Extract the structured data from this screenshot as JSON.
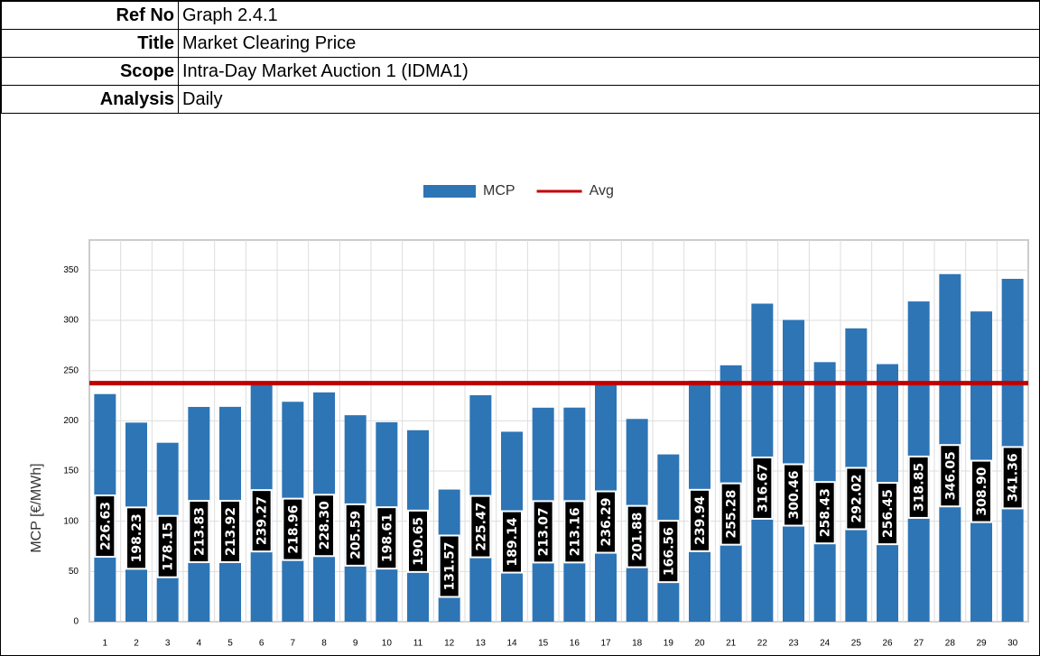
{
  "header": {
    "rows": [
      [
        "Ref No",
        "Graph 2.4.1"
      ],
      [
        "Title",
        "Market Clearing Price"
      ],
      [
        "Scope",
        "Intra-Day Market Auction 1 (IDMA1)"
      ],
      [
        "Analysis",
        "Daily"
      ]
    ]
  },
  "chart_data": {
    "type": "bar",
    "y_label": "MCP [€/MWh]",
    "categories": [
      "1",
      "2",
      "3",
      "4",
      "5",
      "6",
      "7",
      "8",
      "9",
      "10",
      "11",
      "12",
      "13",
      "14",
      "15",
      "16",
      "17",
      "18",
      "19",
      "20",
      "21",
      "22",
      "23",
      "24",
      "25",
      "26",
      "27",
      "28",
      "29",
      "30"
    ],
    "series": [
      {
        "name": "MCP",
        "color": "#2e75b6",
        "values": [
          226.63,
          198.23,
          178.15,
          213.83,
          213.92,
          239.27,
          218.96,
          228.3,
          205.59,
          198.61,
          190.65,
          131.57,
          225.47,
          189.14,
          213.07,
          213.16,
          236.29,
          201.88,
          166.56,
          239.94,
          255.28,
          316.67,
          300.46,
          258.43,
          292.02,
          256.45,
          318.85,
          346.05,
          308.9,
          341.36
        ],
        "value_labels": [
          "226.63",
          "198.23",
          "178.15",
          "213.83",
          "213.92",
          "239.27",
          "218.96",
          "228.30",
          "205.59",
          "198.61",
          "190.65",
          "131.57",
          "225.47",
          "189.14",
          "213.07",
          "213.16",
          "236.29",
          "201.88",
          "166.56",
          "239.94",
          "255.28",
          "316.67",
          "300.46",
          "258.43",
          "292.02",
          "256.45",
          "318.85",
          "346.05",
          "308.90",
          "341.36"
        ]
      },
      {
        "name": "Avg",
        "type": "line",
        "color": "#c00000",
        "values": [
          237.46,
          237.46,
          237.46,
          237.46,
          237.46,
          237.46,
          237.46,
          237.46,
          237.46,
          237.46,
          237.46,
          237.46,
          237.46,
          237.46,
          237.46,
          237.46,
          237.46,
          237.46,
          237.46,
          237.46,
          237.46,
          237.46,
          237.46,
          237.46,
          237.46,
          237.46,
          237.46,
          237.46,
          237.46,
          237.46
        ]
      }
    ],
    "ylim": [
      0,
      380
    ],
    "yticks": [
      0,
      50,
      100,
      150,
      200,
      250,
      300,
      350
    ],
    "grid": true,
    "legend": "top"
  }
}
